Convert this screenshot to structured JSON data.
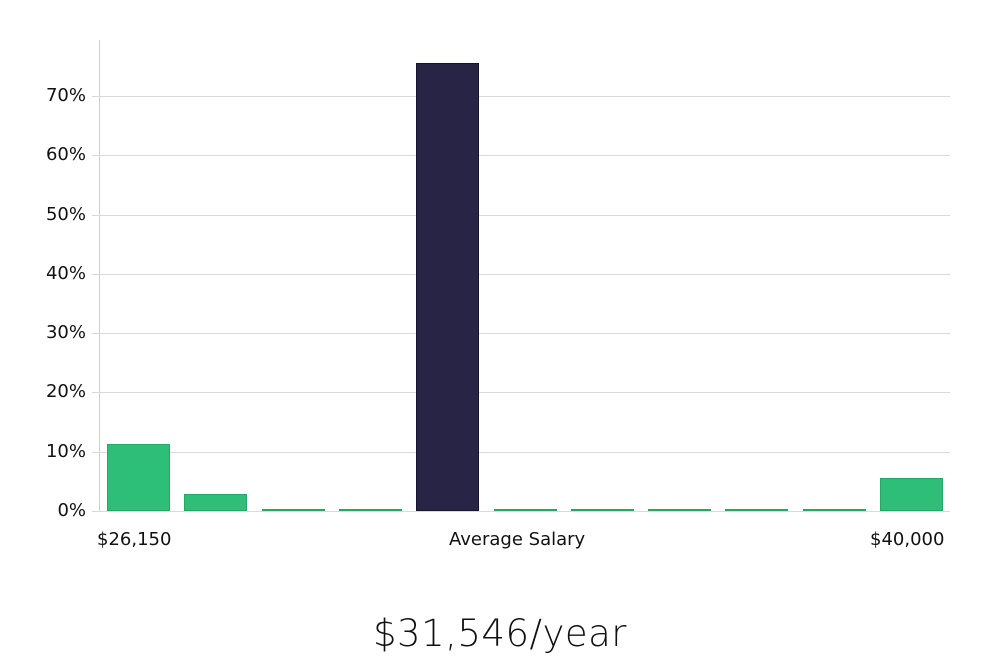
{
  "chart_data": {
    "type": "bar",
    "title": "",
    "xlabel": "Average Salary",
    "ylabel": "",
    "ylim": [
      0,
      80
    ],
    "yticks": [
      "0%",
      "10%",
      "20%",
      "30%",
      "40%",
      "50%",
      "60%",
      "70%"
    ],
    "x_range_labels": {
      "min": "$26,150",
      "center": "Average Salary",
      "max": "$40,000"
    },
    "categories": [
      "bin1",
      "bin2",
      "bin3",
      "bin4",
      "bin5",
      "bin6",
      "bin7",
      "bin8",
      "bin9",
      "bin10",
      "bin11"
    ],
    "values": [
      11.3,
      2.9,
      0.3,
      0.3,
      75.5,
      0.3,
      0.3,
      0.3,
      0.3,
      0.3,
      5.6
    ],
    "highlighted_index": 4,
    "grid": true,
    "legend": null
  },
  "colors": {
    "bar": "#2dbe78",
    "bar_border": "#25a866",
    "highlight": "#272446",
    "highlight_border": "#161330",
    "grid": "#d9d9d9"
  },
  "summary": {
    "salary_text": "$31,546/year"
  }
}
